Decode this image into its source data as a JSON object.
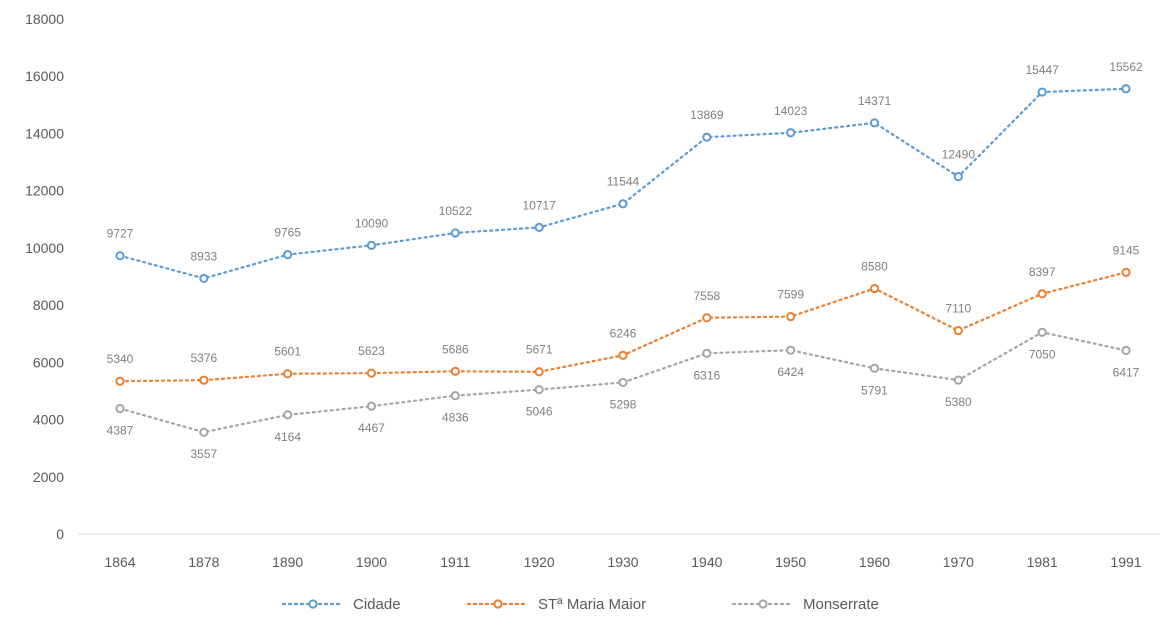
{
  "chart_data": {
    "type": "line",
    "title": "",
    "xlabel": "",
    "ylabel": "",
    "categories": [
      "1864",
      "1878",
      "1890",
      "1900",
      "1911",
      "1920",
      "1930",
      "1940",
      "1950",
      "1960",
      "1970",
      "1981",
      "1991"
    ],
    "ylim": [
      0,
      18000
    ],
    "yticks": [
      0,
      2000,
      4000,
      6000,
      8000,
      10000,
      12000,
      14000,
      16000,
      18000
    ],
    "grid": false,
    "legend_position": "bottom",
    "series": [
      {
        "name": "Cidade",
        "color": "#5b9bd5",
        "line_style": "dotted",
        "marker": "circle",
        "values": [
          9727,
          8933,
          9765,
          10090,
          10522,
          10717,
          11544,
          13869,
          14023,
          14371,
          12490,
          15447,
          15562
        ],
        "labels": [
          "9727",
          "8933",
          "9765",
          "10090",
          "10522",
          "10717",
          "11544",
          "13869",
          "14023",
          "14371",
          "12490",
          "15447",
          "15562"
        ]
      },
      {
        "name": "STª Maria Maior",
        "color": "#ed7d31",
        "line_style": "dotted",
        "marker": "circle",
        "values": [
          5340,
          5376,
          5601,
          5623,
          5686,
          5671,
          6246,
          7558,
          7599,
          8580,
          7110,
          8397,
          9145
        ],
        "labels": [
          "5340",
          "5376",
          "5601",
          "5623",
          "5686",
          "5671",
          "6246",
          "7558",
          "7599",
          "8580",
          "7110",
          "8397",
          "9145"
        ]
      },
      {
        "name": "Monserrate",
        "color": "#a5a5a5",
        "line_style": "dotted",
        "marker": "circle",
        "values": [
          4387,
          3557,
          4164,
          4467,
          4836,
          5046,
          5298,
          6316,
          6424,
          5791,
          5380,
          7050,
          6417
        ],
        "labels": [
          "4387",
          "3557",
          "4164",
          "4467",
          "4836",
          "5046",
          "5298",
          "6316",
          "6424",
          "5791",
          "5380",
          "7050",
          "6417"
        ]
      }
    ]
  }
}
